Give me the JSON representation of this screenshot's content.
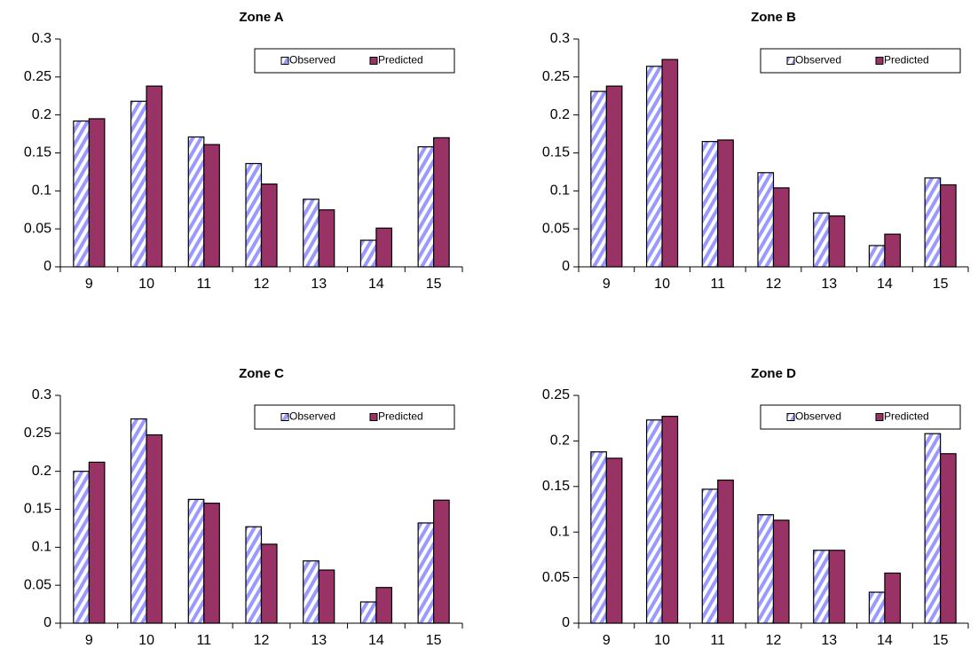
{
  "chart_data": [
    {
      "type": "bar",
      "title": "Zone A",
      "categories": [
        9,
        10,
        11,
        12,
        13,
        14,
        15
      ],
      "series": [
        {
          "name": "Observed",
          "color": "#9999ff",
          "hatch": true,
          "values": [
            0.192,
            0.218,
            0.171,
            0.136,
            0.089,
            0.035,
            0.158
          ]
        },
        {
          "name": "Predicted",
          "color": "#993366",
          "hatch": false,
          "values": [
            0.195,
            0.238,
            0.161,
            0.109,
            0.075,
            0.051,
            0.17
          ]
        }
      ],
      "ylim": [
        0,
        0.3
      ],
      "yticks": [
        0,
        0.05,
        0.1,
        0.15,
        0.2,
        0.25,
        0.3
      ],
      "legend": "upper right"
    },
    {
      "type": "bar",
      "title": "Zone B",
      "categories": [
        9,
        10,
        11,
        12,
        13,
        14,
        15
      ],
      "series": [
        {
          "name": "Observed",
          "color": "#9999ff",
          "hatch": true,
          "values": [
            0.231,
            0.264,
            0.165,
            0.124,
            0.071,
            0.028,
            0.117
          ]
        },
        {
          "name": "Predicted",
          "color": "#993366",
          "hatch": false,
          "values": [
            0.238,
            0.273,
            0.167,
            0.104,
            0.067,
            0.043,
            0.108
          ]
        }
      ],
      "ylim": [
        0,
        0.3
      ],
      "yticks": [
        0,
        0.05,
        0.1,
        0.15,
        0.2,
        0.25,
        0.3
      ],
      "legend": "upper right"
    },
    {
      "type": "bar",
      "title": "Zone C",
      "categories": [
        9,
        10,
        11,
        12,
        13,
        14,
        15
      ],
      "series": [
        {
          "name": "Observed",
          "color": "#9999ff",
          "hatch": true,
          "values": [
            0.2,
            0.269,
            0.163,
            0.127,
            0.082,
            0.028,
            0.132
          ]
        },
        {
          "name": "Predicted",
          "color": "#993366",
          "hatch": false,
          "values": [
            0.212,
            0.248,
            0.158,
            0.104,
            0.07,
            0.047,
            0.162
          ]
        }
      ],
      "ylim": [
        0,
        0.3
      ],
      "yticks": [
        0,
        0.05,
        0.1,
        0.15,
        0.2,
        0.25,
        0.3
      ],
      "legend": "upper right"
    },
    {
      "type": "bar",
      "title": "Zone D",
      "categories": [
        9,
        10,
        11,
        12,
        13,
        14,
        15
      ],
      "series": [
        {
          "name": "Observed",
          "color": "#9999ff",
          "hatch": true,
          "values": [
            0.188,
            0.223,
            0.147,
            0.119,
            0.08,
            0.034,
            0.208
          ]
        },
        {
          "name": "Predicted",
          "color": "#993366",
          "hatch": false,
          "values": [
            0.181,
            0.227,
            0.157,
            0.113,
            0.08,
            0.055,
            0.186
          ]
        }
      ],
      "ylim": [
        0,
        0.25
      ],
      "yticks": [
        0,
        0.05,
        0.1,
        0.15,
        0.2,
        0.25
      ],
      "legend": "upper right"
    }
  ]
}
